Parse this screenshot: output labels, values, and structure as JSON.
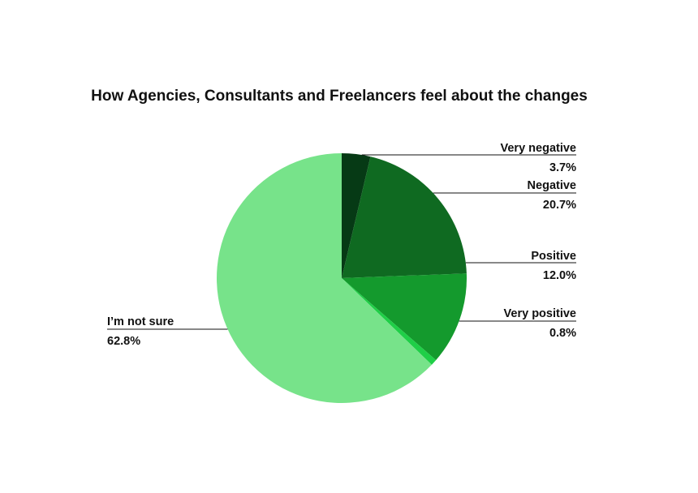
{
  "chart_data": {
    "type": "pie",
    "title": "How Agencies, Consultants and Freelancers feel about the changes",
    "slices": [
      {
        "label": "Very negative",
        "value": 3.7,
        "value_label": "3.7%",
        "color": "#063a15"
      },
      {
        "label": "Negative",
        "value": 20.7,
        "value_label": "20.7%",
        "color": "#0f6a21"
      },
      {
        "label": "Positive",
        "value": 12.0,
        "value_label": "12.0%",
        "color": "#149a2d"
      },
      {
        "label": "Very positive",
        "value": 0.8,
        "value_label": "0.8%",
        "color": "#1fcf47"
      },
      {
        "label": "I’m not sure",
        "value": 62.8,
        "value_label": "62.8%",
        "color": "#77e38a"
      }
    ],
    "legend": "none",
    "start_angle": "top",
    "direction": "clockwise"
  }
}
